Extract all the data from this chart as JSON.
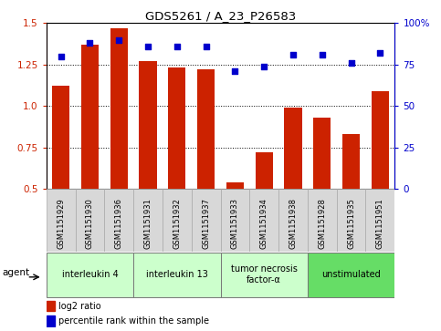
{
  "title": "GDS5261 / A_23_P26583",
  "samples": [
    "GSM1151929",
    "GSM1151930",
    "GSM1151936",
    "GSM1151931",
    "GSM1151932",
    "GSM1151937",
    "GSM1151933",
    "GSM1151934",
    "GSM1151938",
    "GSM1151928",
    "GSM1151935",
    "GSM1151951"
  ],
  "log2_ratio": [
    1.12,
    1.37,
    1.47,
    1.27,
    1.23,
    1.22,
    0.54,
    0.72,
    0.99,
    0.93,
    0.83,
    1.09
  ],
  "percentile": [
    80,
    88,
    90,
    86,
    86,
    86,
    71,
    74,
    81,
    81,
    76,
    82
  ],
  "bar_color": "#cc2200",
  "dot_color": "#0000cc",
  "groups": [
    {
      "label": "interleukin 4",
      "start": 0,
      "end": 3,
      "color": "#ccffcc"
    },
    {
      "label": "interleukin 13",
      "start": 3,
      "end": 6,
      "color": "#ccffcc"
    },
    {
      "label": "tumor necrosis\nfactor-α",
      "start": 6,
      "end": 9,
      "color": "#ccffcc"
    },
    {
      "label": "unstimulated",
      "start": 9,
      "end": 12,
      "color": "#66dd66"
    }
  ],
  "ylim_left": [
    0.5,
    1.5
  ],
  "ylim_right": [
    0,
    100
  ],
  "yticks_left": [
    0.5,
    0.75,
    1.0,
    1.25,
    1.5
  ],
  "yticks_right": [
    0,
    25,
    50,
    75,
    100
  ],
  "ytick_labels_right": [
    "0",
    "25",
    "50",
    "75",
    "100%"
  ],
  "hlines": [
    0.75,
    1.0,
    1.25
  ],
  "agent_label": "agent",
  "legend_bar_label": "log2 ratio",
  "legend_dot_label": "percentile rank within the sample",
  "cell_color": "#d8d8d8",
  "cell_border_color": "#aaaaaa"
}
